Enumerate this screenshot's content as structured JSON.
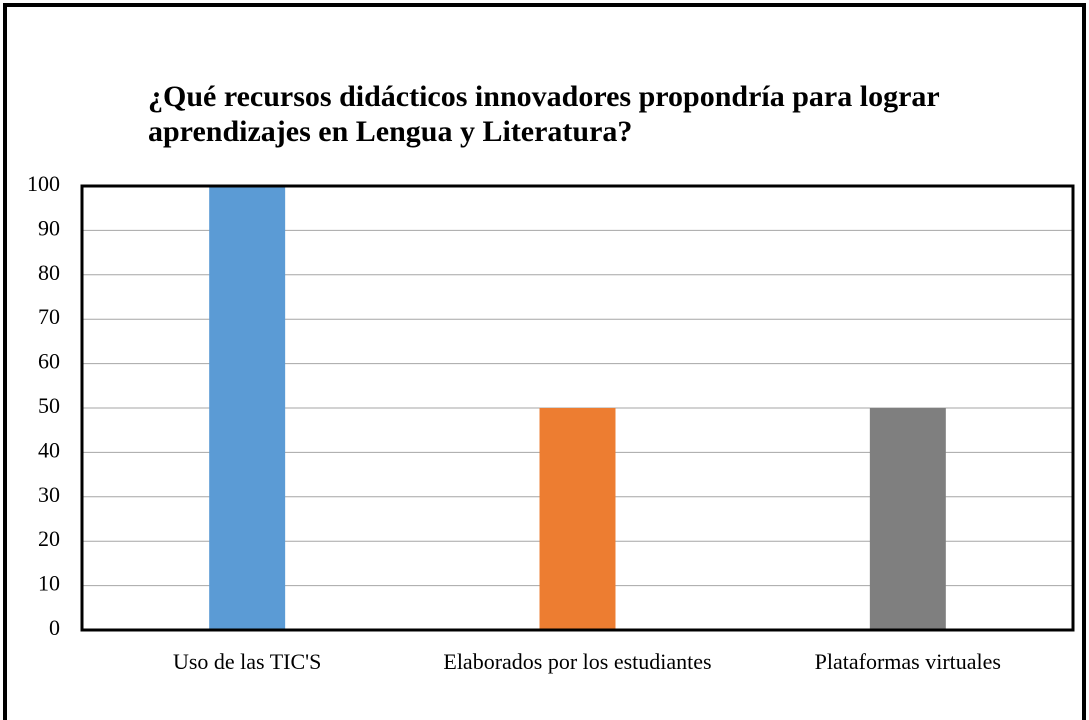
{
  "chart_data": {
    "type": "bar",
    "title": [
      "¿Qué recursos didácticos innovadores propondría para lograr",
      "aprendizajes en Lengua y Literatura?"
    ],
    "categories": [
      "Uso de las TIC'S",
      "Elaborados por los estudiantes",
      "Plataformas virtuales"
    ],
    "values": [
      100,
      50,
      50
    ],
    "colors": [
      "#5b9bd5",
      "#ed7d31",
      "#7f7f7f"
    ],
    "ylim": [
      0,
      100
    ],
    "yticks": [
      0,
      10,
      20,
      30,
      40,
      50,
      60,
      70,
      80,
      90,
      100
    ],
    "grid": true
  }
}
